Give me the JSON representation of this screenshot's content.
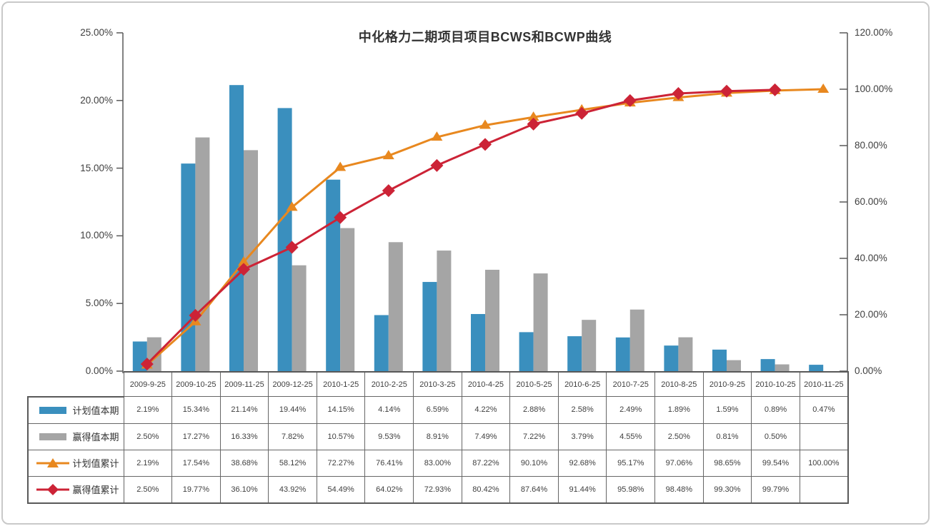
{
  "frame": {
    "border_color": "#c9c9c9",
    "background": "#ffffff"
  },
  "chart_data": {
    "type": "combo-bar-line",
    "title": "中化格力二期项目项目BCWS和BCWP曲线",
    "grid": false,
    "legend_position": "table-left",
    "categories": [
      "2009-9-25",
      "2009-10-25",
      "2009-11-25",
      "2009-12-25",
      "2010-1-25",
      "2010-2-25",
      "2010-3-25",
      "2010-4-25",
      "2010-5-25",
      "2010-6-25",
      "2010-7-25",
      "2010-8-25",
      "2010-9-25",
      "2010-10-25",
      "2010-11-25"
    ],
    "left_axis": {
      "min": 0,
      "max": 25,
      "tick_step": 5,
      "tick_labels": [
        "0.00%",
        "5.00%",
        "10.00%",
        "15.00%",
        "20.00%",
        "25.00%"
      ]
    },
    "right_axis": {
      "min": 0,
      "max": 120,
      "tick_step": 20,
      "tick_labels": [
        "0.00%",
        "20.00%",
        "40.00%",
        "60.00%",
        "80.00%",
        "100.00%",
        "120.00%"
      ]
    },
    "series": [
      {
        "name": "计划值本期",
        "type": "bar",
        "axis": "left",
        "color": "#3a8fbe",
        "marker": "none",
        "values": [
          2.19,
          15.34,
          21.14,
          19.44,
          14.15,
          4.14,
          6.59,
          4.22,
          2.88,
          2.58,
          2.49,
          1.89,
          1.59,
          0.89,
          0.47
        ]
      },
      {
        "name": "赢得值本期",
        "type": "bar",
        "axis": "left",
        "color": "#a5a5a5",
        "marker": "none",
        "values": [
          2.5,
          17.27,
          16.33,
          7.82,
          10.57,
          9.53,
          8.91,
          7.49,
          7.22,
          3.79,
          4.55,
          2.5,
          0.81,
          0.5,
          null
        ]
      },
      {
        "name": "计划值累计",
        "type": "line",
        "axis": "right",
        "color": "#e8881f",
        "marker": "triangle",
        "values": [
          2.19,
          17.54,
          38.68,
          58.12,
          72.27,
          76.41,
          83.0,
          87.22,
          90.1,
          92.68,
          95.17,
          97.06,
          98.65,
          99.54,
          100.0
        ]
      },
      {
        "name": "赢得值累计",
        "type": "line",
        "axis": "right",
        "color": "#cc2336",
        "marker": "diamond",
        "values": [
          2.5,
          19.77,
          36.1,
          43.92,
          54.49,
          64.02,
          72.93,
          80.42,
          87.64,
          91.44,
          95.98,
          98.48,
          99.3,
          99.79,
          null
        ]
      }
    ],
    "table_value_format": "0.00%"
  }
}
